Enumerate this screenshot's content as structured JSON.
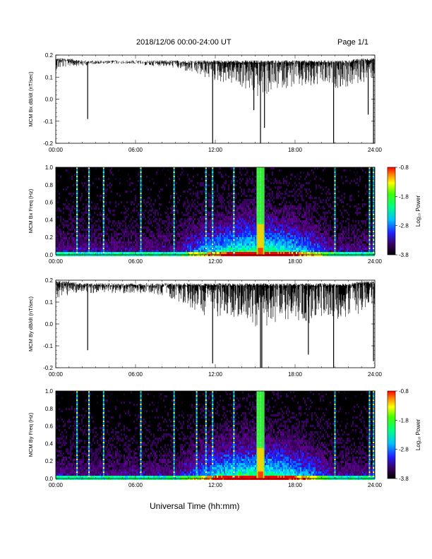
{
  "header": {
    "date_range": "2018/12/06  00:00-24:00 UT",
    "page": "Page 1/1"
  },
  "x_axis": {
    "title": "Universal Time (hh:mm)",
    "ticks": [
      "00:00",
      "06:00",
      "12:00",
      "18:00",
      "24:00"
    ]
  },
  "colorbar": {
    "label": "Log₁₀ Power",
    "ticks": [
      "-0.8",
      "-1.8",
      "-2.8",
      "-3.8"
    ]
  },
  "chart_data": [
    {
      "type": "line",
      "ylabel": "MCM Bx dB/dt (nT/sec)",
      "xlim": [
        0,
        24
      ],
      "ylim": [
        -0.2,
        0.2
      ],
      "yticks": [
        "0.2",
        "0.1",
        "0.0",
        "-0.1",
        "-0.2"
      ],
      "x": [
        0,
        1,
        2,
        3,
        4,
        5,
        6,
        7,
        8,
        9,
        10,
        11,
        12,
        13,
        14,
        15,
        16,
        17,
        18,
        19,
        20,
        21,
        22,
        23,
        24
      ],
      "series": [
        {
          "values_upper": [
            0.18,
            0.18,
            0.17,
            0.17,
            0.17,
            0.17,
            0.17,
            0.17,
            0.17,
            0.17,
            0.17,
            0.17,
            0.17,
            0.17,
            0.17,
            0.17,
            0.17,
            0.17,
            0.17,
            0.17,
            0.17,
            0.17,
            0.17,
            0.18,
            0.18
          ],
          "values_lower": [
            0.13,
            0.15,
            0.15,
            0.16,
            0.16,
            0.16,
            0.16,
            0.15,
            0.15,
            0.14,
            0.12,
            0.1,
            0.08,
            0.07,
            0.05,
            0.0,
            0.02,
            0.05,
            0.05,
            0.04,
            0.06,
            0.05,
            0.05,
            0.07,
            0.1
          ],
          "spikes": [
            [
              2.4,
              -0.09
            ],
            [
              11.8,
              -0.2
            ],
            [
              14.9,
              -0.05
            ],
            [
              15.4,
              -0.2
            ],
            [
              15.7,
              -0.13
            ],
            [
              20.9,
              -0.2
            ],
            [
              23.5,
              -0.07
            ],
            [
              23.9,
              -0.2
            ]
          ]
        }
      ]
    },
    {
      "type": "heatmap",
      "ylabel": "MCM Bx Freq (Hz)",
      "xlim": [
        0,
        24
      ],
      "ylim": [
        0,
        1.0
      ],
      "yticks": [
        "1.0",
        "0.8",
        "0.6",
        "0.4",
        "0.2",
        "0.0"
      ],
      "zlim": [
        -3.8,
        -0.8
      ],
      "bright_lines_hours": [
        1.6,
        2.5,
        3.6,
        6.4,
        8.9,
        11.3,
        11.8,
        13.4,
        15.2,
        15.4,
        21.0,
        23.6,
        23.9
      ],
      "burst_hours": [
        [
          15.1,
          15.7
        ]
      ]
    },
    {
      "type": "line",
      "ylabel": "MCM By dB/dt (nT/sec)",
      "xlim": [
        0,
        24
      ],
      "ylim": [
        -0.2,
        0.2
      ],
      "yticks": [
        "0.2",
        "0.1",
        "0.0",
        "-0.1",
        "-0.2"
      ],
      "x": [
        0,
        1,
        2,
        3,
        4,
        5,
        6,
        7,
        8,
        9,
        10,
        11,
        12,
        13,
        14,
        15,
        16,
        17,
        18,
        19,
        20,
        21,
        22,
        23,
        24
      ],
      "series": [
        {
          "values_upper": [
            0.19,
            0.19,
            0.18,
            0.18,
            0.18,
            0.18,
            0.18,
            0.18,
            0.18,
            0.18,
            0.18,
            0.18,
            0.18,
            0.18,
            0.18,
            0.18,
            0.18,
            0.18,
            0.18,
            0.18,
            0.18,
            0.18,
            0.18,
            0.19,
            0.19
          ],
          "values_lower": [
            0.12,
            0.13,
            0.14,
            0.14,
            0.14,
            0.14,
            0.14,
            0.14,
            0.13,
            0.11,
            0.08,
            0.04,
            0.03,
            0.04,
            0.02,
            -0.02,
            -0.01,
            0.02,
            0.02,
            0.0,
            0.03,
            0.02,
            0.03,
            0.05,
            0.09
          ],
          "spikes": [
            [
              2.4,
              -0.12
            ],
            [
              11.8,
              -0.18
            ],
            [
              15.4,
              -0.2
            ],
            [
              15.5,
              -0.2
            ],
            [
              19.0,
              -0.14
            ],
            [
              20.9,
              -0.2
            ],
            [
              23.9,
              -0.17
            ]
          ]
        }
      ]
    },
    {
      "type": "heatmap",
      "ylabel": "MCM By Freq (Hz)",
      "xlim": [
        0,
        24
      ],
      "ylim": [
        0,
        1.0
      ],
      "yticks": [
        "1.0",
        "0.8",
        "0.6",
        "0.4",
        "0.2",
        "0.0"
      ],
      "zlim": [
        -3.8,
        -0.8
      ],
      "bright_lines_hours": [
        1.6,
        2.5,
        3.6,
        6.4,
        8.9,
        10.6,
        11.3,
        11.8,
        13.4,
        15.2,
        15.4,
        21.0,
        23.6,
        23.9
      ],
      "burst_hours": [
        [
          15.1,
          15.7
        ]
      ]
    }
  ]
}
